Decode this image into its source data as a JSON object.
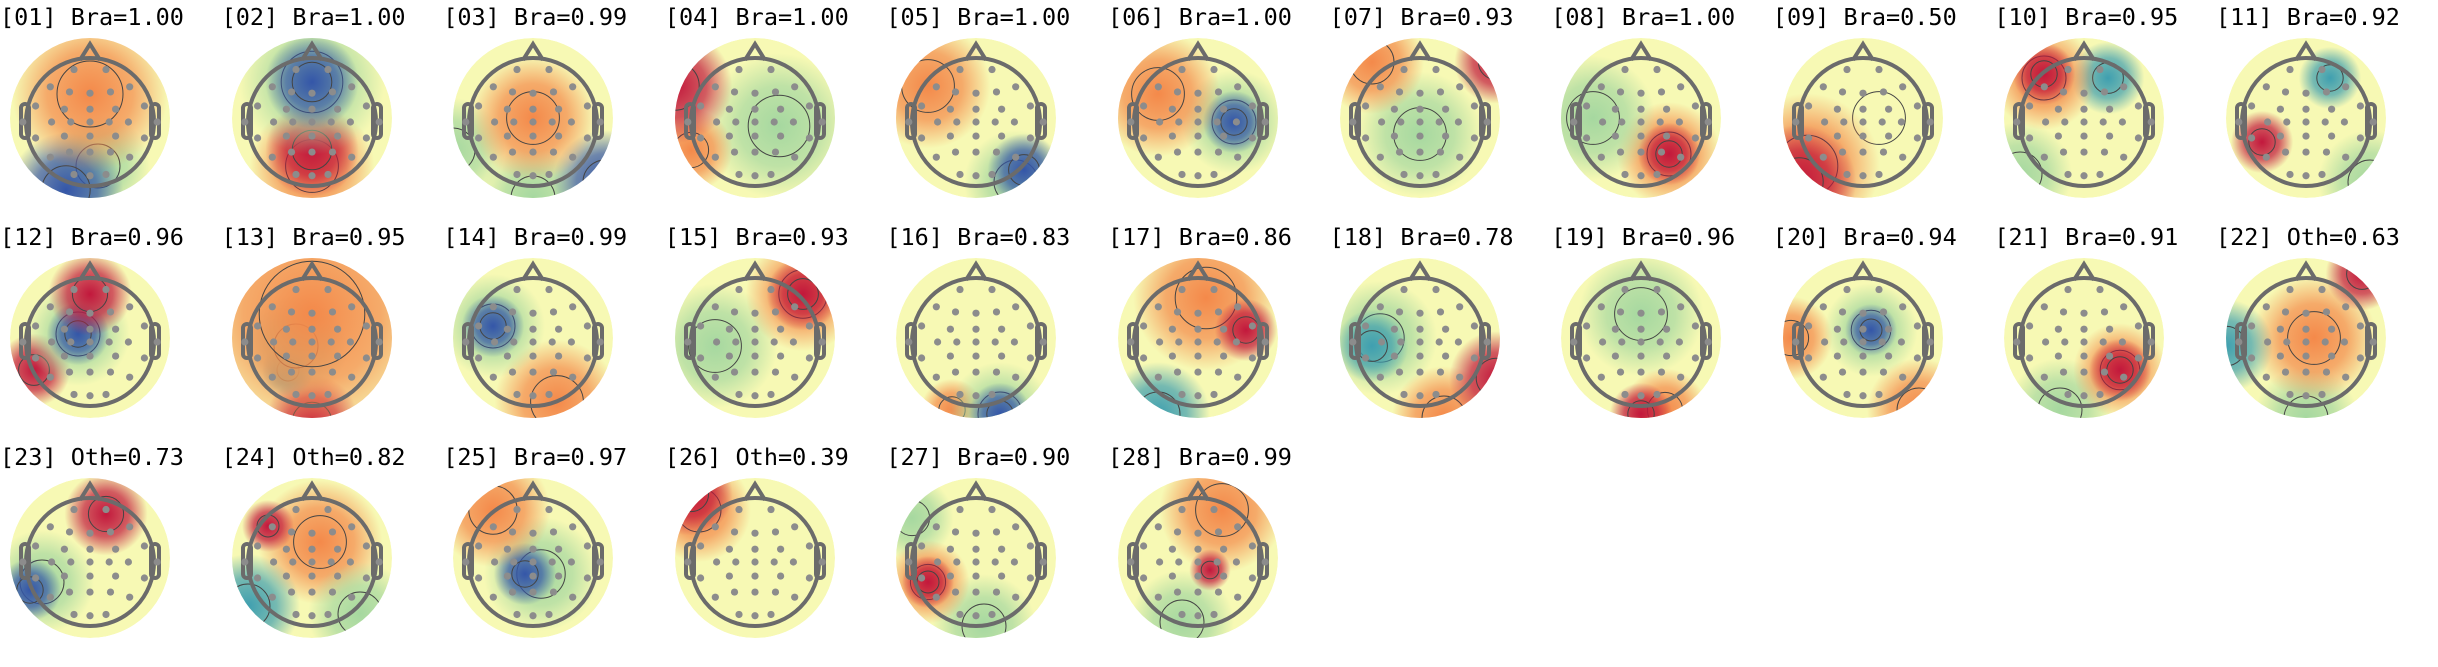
{
  "chart_data": {
    "type": "heatmap",
    "subtype": "eeg-topomap-grid",
    "colormap": "spectral (red positive, blue negative)",
    "colors": {
      "red": "#c2183c",
      "orange": "#f4894a",
      "yellow": "#f7f9b4",
      "green": "#a6d8a0",
      "teal": "#3f9fb0",
      "blue": "#3456a8"
    },
    "grid": {
      "rows": 3,
      "columns": 11
    },
    "components": [
      {
        "index": "01",
        "label": "Bra",
        "prob": "1.00",
        "title": "[01] Bra=1.00"
      },
      {
        "index": "02",
        "label": "Bra",
        "prob": "1.00",
        "title": "[02] Bra=1.00"
      },
      {
        "index": "03",
        "label": "Bra",
        "prob": "0.99",
        "title": "[03] Bra=0.99"
      },
      {
        "index": "04",
        "label": "Bra",
        "prob": "1.00",
        "title": "[04] Bra=1.00"
      },
      {
        "index": "05",
        "label": "Bra",
        "prob": "1.00",
        "title": "[05] Bra=1.00"
      },
      {
        "index": "06",
        "label": "Bra",
        "prob": "1.00",
        "title": "[06] Bra=1.00"
      },
      {
        "index": "07",
        "label": "Bra",
        "prob": "0.93",
        "title": "[07] Bra=0.93"
      },
      {
        "index": "08",
        "label": "Bra",
        "prob": "1.00",
        "title": "[08] Bra=1.00"
      },
      {
        "index": "09",
        "label": "Bra",
        "prob": "0.50",
        "title": "[09] Bra=0.50"
      },
      {
        "index": "10",
        "label": "Bra",
        "prob": "0.95",
        "title": "[10] Bra=0.95"
      },
      {
        "index": "11",
        "label": "Bra",
        "prob": "0.92",
        "title": "[11] Bra=0.92"
      },
      {
        "index": "12",
        "label": "Bra",
        "prob": "0.96",
        "title": "[12] Bra=0.96"
      },
      {
        "index": "13",
        "label": "Bra",
        "prob": "0.95",
        "title": "[13] Bra=0.95"
      },
      {
        "index": "14",
        "label": "Bra",
        "prob": "0.99",
        "title": "[14] Bra=0.99"
      },
      {
        "index": "15",
        "label": "Bra",
        "prob": "0.93",
        "title": "[15] Bra=0.93"
      },
      {
        "index": "16",
        "label": "Bra",
        "prob": "0.83",
        "title": "[16] Bra=0.83"
      },
      {
        "index": "17",
        "label": "Bra",
        "prob": "0.86",
        "title": "[17] Bra=0.86"
      },
      {
        "index": "18",
        "label": "Bra",
        "prob": "0.78",
        "title": "[18] Bra=0.78"
      },
      {
        "index": "19",
        "label": "Bra",
        "prob": "0.96",
        "title": "[19] Bra=0.96"
      },
      {
        "index": "20",
        "label": "Bra",
        "prob": "0.94",
        "title": "[20] Bra=0.94"
      },
      {
        "index": "21",
        "label": "Bra",
        "prob": "0.91",
        "title": "[21] Bra=0.91"
      },
      {
        "index": "22",
        "label": "Oth",
        "prob": "0.63",
        "title": "[22] Oth=0.63"
      },
      {
        "index": "23",
        "label": "Oth",
        "prob": "0.73",
        "title": "[23] Oth=0.73"
      },
      {
        "index": "24",
        "label": "Oth",
        "prob": "0.82",
        "title": "[24] Oth=0.82"
      },
      {
        "index": "25",
        "label": "Bra",
        "prob": "0.97",
        "title": "[25] Bra=0.97"
      },
      {
        "index": "26",
        "label": "Oth",
        "prob": "0.39",
        "title": "[26] Oth=0.39"
      },
      {
        "index": "27",
        "label": "Bra",
        "prob": "0.90",
        "title": "[27] Bra=0.90"
      },
      {
        "index": "28",
        "label": "Bra",
        "prob": "0.99",
        "title": "[28] Bra=0.99"
      }
    ]
  }
}
